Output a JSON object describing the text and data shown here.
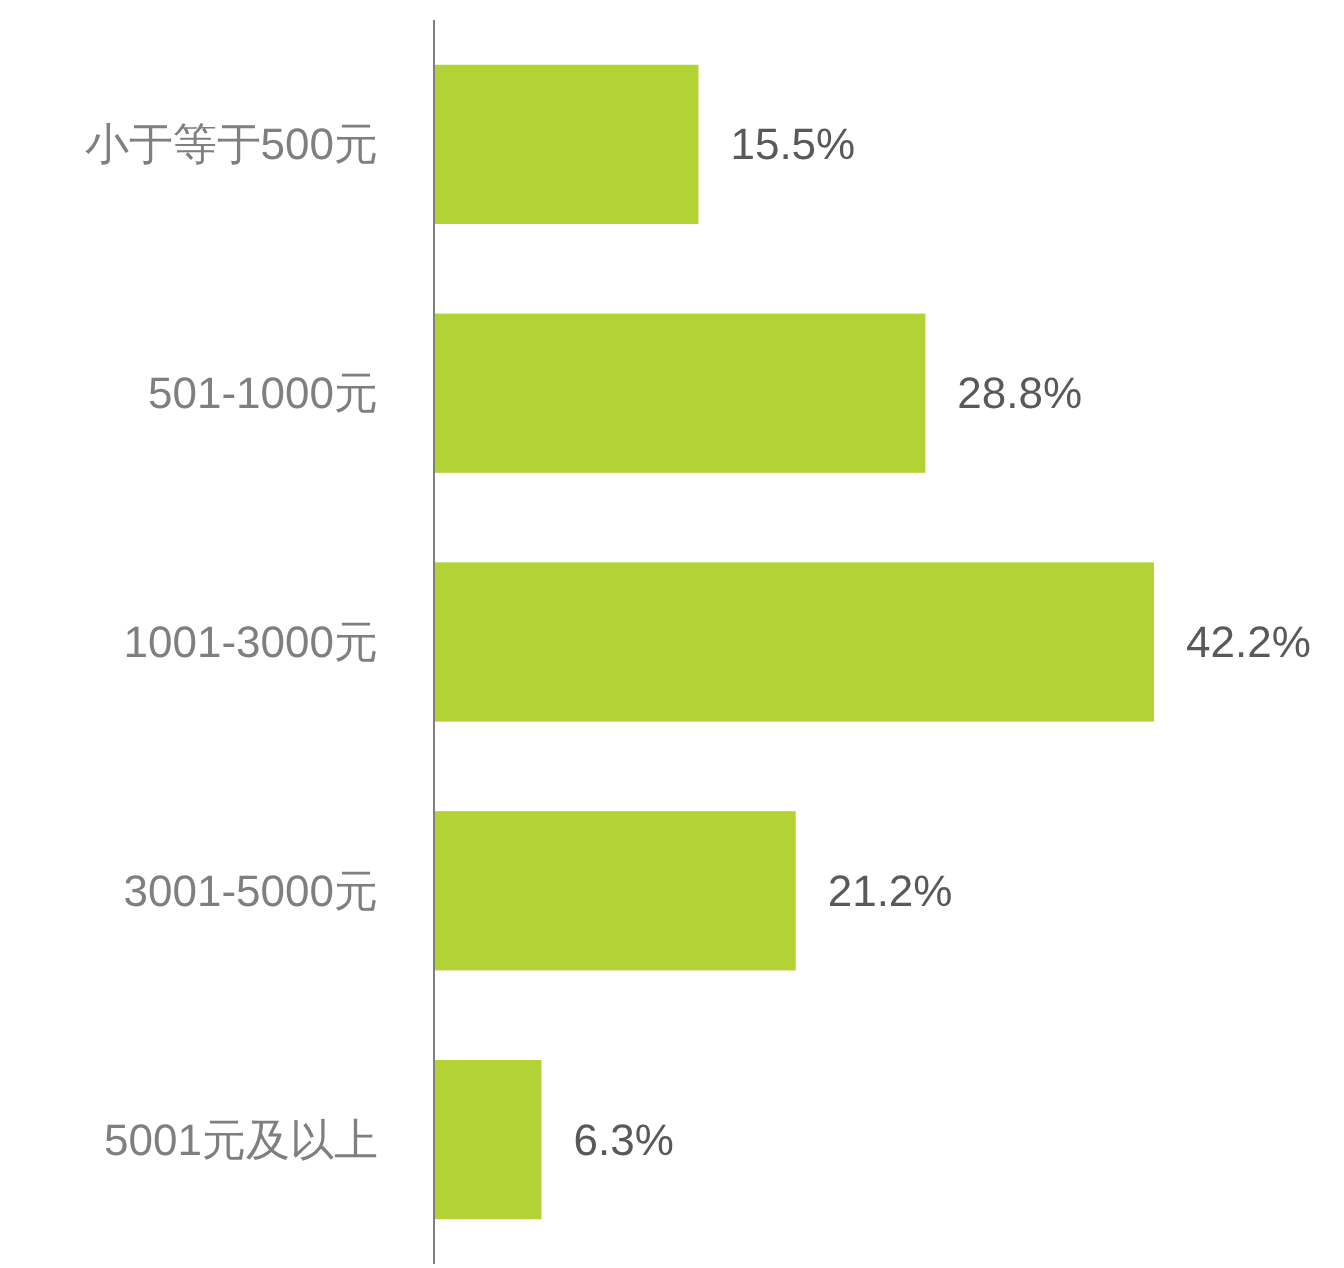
{
  "chart_data": {
    "type": "bar",
    "orientation": "horizontal",
    "categories": [
      "小于等于500元",
      "501-1000元",
      "1001-3000元",
      "3001-5000元",
      "5001元及以上"
    ],
    "values": [
      15.5,
      28.8,
      42.2,
      21.2,
      6.3
    ],
    "value_labels": [
      "15.5%",
      "28.8%",
      "42.2%",
      "21.2%",
      "6.3%"
    ],
    "color": "#b2d235"
  }
}
